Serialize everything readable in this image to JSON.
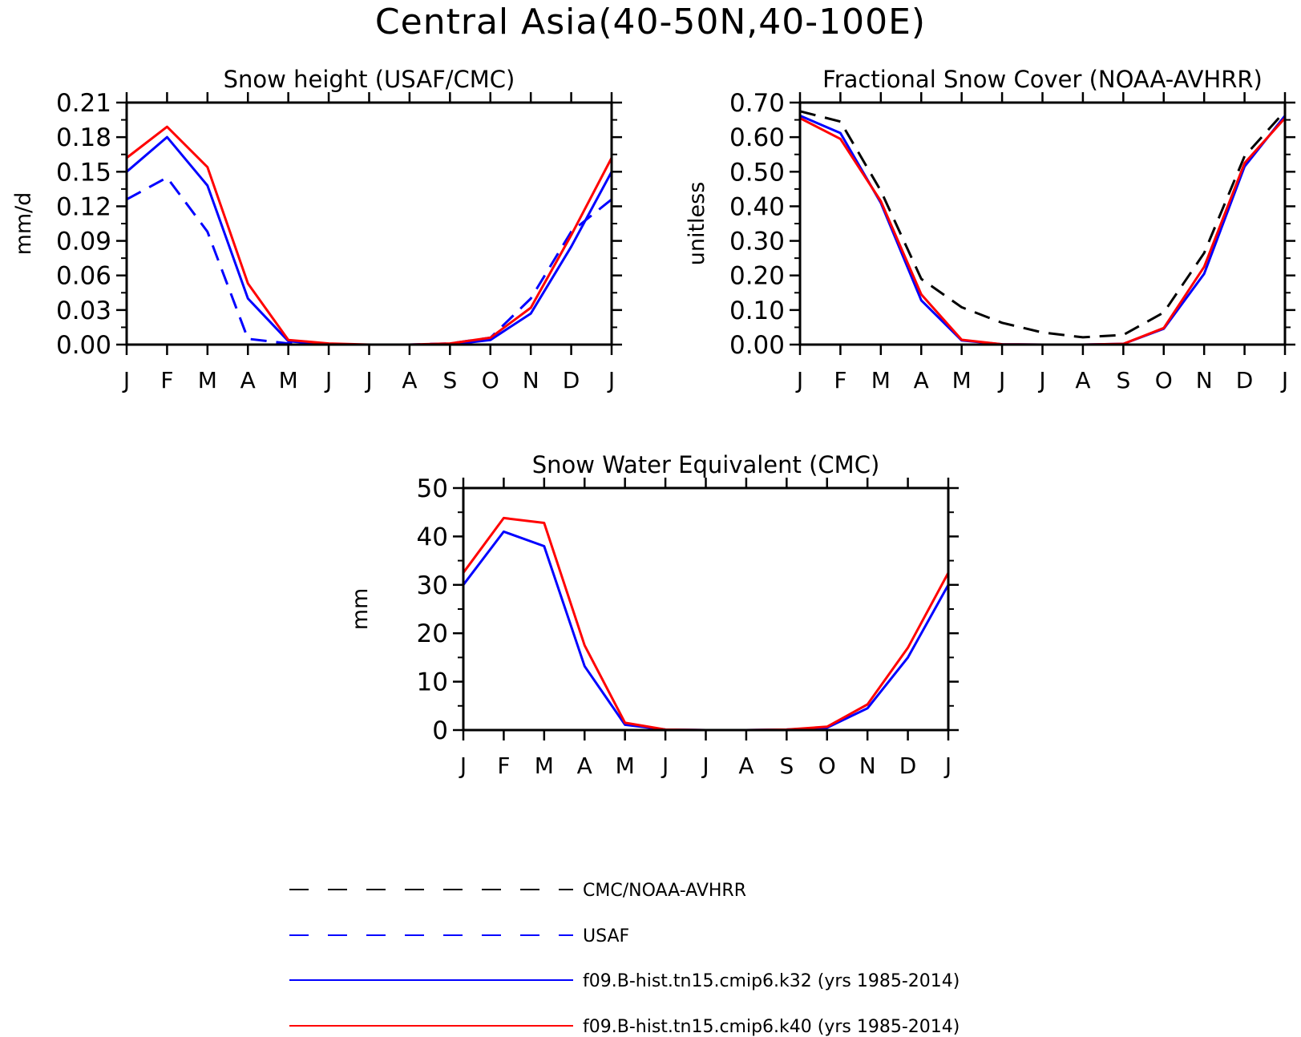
{
  "title": "Central Asia(40-50N,40-100E)",
  "colors": {
    "obs": "#000000",
    "usaf": "#0000ff",
    "k32": "#0000ff",
    "k40": "#ff0000"
  },
  "legend": [
    {
      "label": "CMC/NOAA-AVHRR",
      "color": "#000000",
      "style": "dashed"
    },
    {
      "label": "USAF",
      "color": "#0000ff",
      "style": "dashed"
    },
    {
      "label": "f09.B-hist.tn15.cmip6.k32 (yrs 1985-2014)",
      "color": "#0000ff",
      "style": "solid"
    },
    {
      "label": "f09.B-hist.tn15.cmip6.k40 (yrs 1985-2014)",
      "color": "#ff0000",
      "style": "solid"
    }
  ],
  "chart_data": [
    {
      "type": "line",
      "title": "Snow height (USAF/CMC)",
      "ylabel": "mm/d",
      "xlabel": "",
      "categories": [
        "J",
        "F",
        "M",
        "A",
        "M",
        "J",
        "J",
        "A",
        "S",
        "O",
        "N",
        "D",
        "J"
      ],
      "ylim": [
        0,
        0.21
      ],
      "yticks": [
        "0.00",
        "0.03",
        "0.06",
        "0.09",
        "0.12",
        "0.15",
        "0.18",
        "0.21"
      ],
      "series": [
        {
          "name": "CMC/NOAA-AVHRR",
          "color": "#000000",
          "style": "dashed",
          "values": [
            0,
            0,
            0,
            0,
            0,
            0,
            0,
            0,
            0,
            0,
            0,
            0,
            0
          ]
        },
        {
          "name": "USAF",
          "color": "#0000ff",
          "style": "dashed",
          "values": [
            0.126,
            0.145,
            0.098,
            0.005,
            0.001,
            0,
            0,
            0,
            0.001,
            0.006,
            0.04,
            0.098,
            0.126
          ]
        },
        {
          "name": "f09.B-hist.tn15.cmip6.k32 (yrs 1985-2014)",
          "color": "#0000ff",
          "style": "solid",
          "values": [
            0.15,
            0.18,
            0.138,
            0.04,
            0.003,
            0,
            0,
            0,
            0,
            0.004,
            0.027,
            0.085,
            0.15
          ]
        },
        {
          "name": "f09.B-hist.tn15.cmip6.k40 (yrs 1985-2014)",
          "color": "#ff0000",
          "style": "solid",
          "values": [
            0.162,
            0.189,
            0.154,
            0.053,
            0.004,
            0.001,
            0,
            0,
            0.001,
            0.006,
            0.032,
            0.095,
            0.162
          ]
        }
      ]
    },
    {
      "type": "line",
      "title": "Fractional Snow Cover (NOAA-AVHRR)",
      "ylabel": "unitless",
      "xlabel": "",
      "categories": [
        "J",
        "F",
        "M",
        "A",
        "M",
        "J",
        "J",
        "A",
        "S",
        "O",
        "N",
        "D",
        "J"
      ],
      "ylim": [
        0,
        0.7
      ],
      "yticks": [
        "0.00",
        "0.10",
        "0.20",
        "0.30",
        "0.40",
        "0.50",
        "0.60",
        "0.70"
      ],
      "series": [
        {
          "name": "CMC/NOAA-AVHRR",
          "color": "#000000",
          "style": "dashed",
          "values": [
            0.675,
            0.645,
            0.445,
            0.19,
            0.108,
            0.063,
            0.035,
            0.021,
            0.028,
            0.093,
            0.265,
            0.545,
            0.675
          ]
        },
        {
          "name": "f09.B-hist.tn15.cmip6.k32 (yrs 1985-2014)",
          "color": "#0000ff",
          "style": "solid",
          "values": [
            0.662,
            0.612,
            0.41,
            0.128,
            0.012,
            0.001,
            0,
            0,
            0.002,
            0.046,
            0.205,
            0.515,
            0.662
          ]
        },
        {
          "name": "f09.B-hist.tn15.cmip6.k40 (yrs 1985-2014)",
          "color": "#ff0000",
          "style": "solid",
          "values": [
            0.655,
            0.595,
            0.415,
            0.145,
            0.014,
            0.001,
            0,
            0,
            0.002,
            0.048,
            0.225,
            0.525,
            0.655
          ]
        }
      ]
    },
    {
      "type": "line",
      "title": "Snow Water Equivalent (CMC)",
      "ylabel": "mm",
      "xlabel": "",
      "categories": [
        "J",
        "F",
        "M",
        "A",
        "M",
        "J",
        "J",
        "A",
        "S",
        "O",
        "N",
        "D",
        "J"
      ],
      "ylim": [
        0,
        50
      ],
      "yticks": [
        "0",
        "10",
        "20",
        "30",
        "40",
        "50"
      ],
      "series": [
        {
          "name": "CMC/NOAA-AVHRR",
          "color": "#000000",
          "style": "dashed",
          "values": [
            0,
            0,
            0,
            0,
            0,
            0,
            0,
            0,
            0,
            0,
            0,
            0,
            0
          ]
        },
        {
          "name": "f09.B-hist.tn15.cmip6.k32 (yrs 1985-2014)",
          "color": "#0000ff",
          "style": "solid",
          "values": [
            30,
            41,
            38,
            13.2,
            1.1,
            0.1,
            0,
            0,
            0.1,
            0.5,
            4.5,
            15,
            30
          ]
        },
        {
          "name": "f09.B-hist.tn15.cmip6.k40 (yrs 1985-2014)",
          "color": "#ff0000",
          "style": "solid",
          "values": [
            32.5,
            43.8,
            42.8,
            17.5,
            1.5,
            0.1,
            0,
            0,
            0.1,
            0.7,
            5.3,
            17,
            32.5
          ]
        }
      ]
    }
  ]
}
